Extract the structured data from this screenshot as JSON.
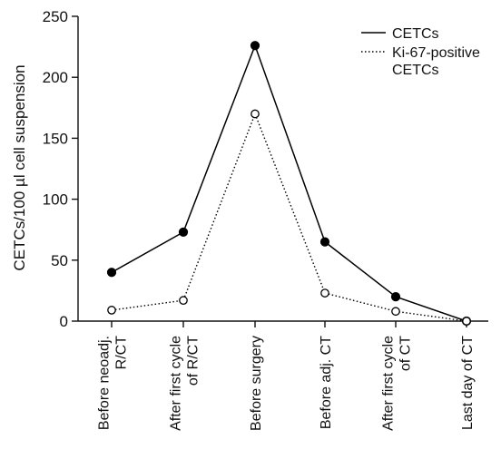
{
  "chart_data": {
    "type": "line",
    "title": "",
    "xlabel": "",
    "ylabel": "CETCs/100 µl cell suspension",
    "ylim": [
      0,
      250
    ],
    "yticks": [
      0,
      50,
      100,
      150,
      200,
      250
    ],
    "grid": false,
    "legend_position": "top-right",
    "categories": [
      [
        "Before neoadj.",
        "R/CT"
      ],
      [
        "After first cycle",
        "of R/CT"
      ],
      [
        "Before surgery"
      ],
      [
        "Before adj. CT"
      ],
      [
        "After first cycle",
        "of CT"
      ],
      [
        "Last day of CT"
      ]
    ],
    "series": [
      {
        "name": "CETCs",
        "values": [
          40,
          73,
          226,
          65,
          20,
          0
        ],
        "line_style": "solid",
        "marker": "filled-circle",
        "color": "#000000"
      },
      {
        "name": "Ki-67-positive CETCs",
        "legend_lines": [
          "Ki-67-positive",
          "CETCs"
        ],
        "values": [
          9,
          17,
          170,
          23,
          8,
          0
        ],
        "line_style": "dotted",
        "marker": "open-circle",
        "color": "#000000"
      }
    ]
  }
}
